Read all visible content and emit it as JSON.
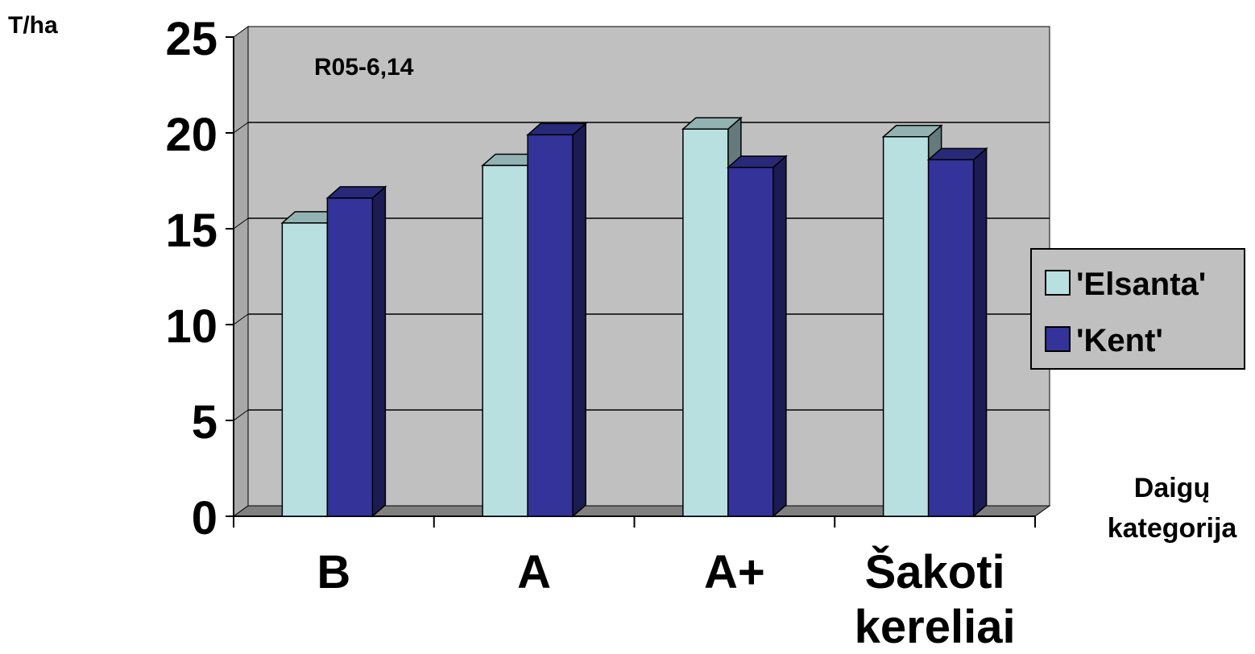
{
  "chart_data": {
    "type": "bar",
    "ylabel": "T/ha",
    "xlabel": [
      "Daigų",
      "kategorija"
    ],
    "annotation": "R05-6,14",
    "categories": [
      [
        "B"
      ],
      [
        "A"
      ],
      [
        "A+"
      ],
      [
        "Šakoti",
        "kereliai"
      ]
    ],
    "series": [
      {
        "name": "'Elsanta'",
        "values": [
          15.3,
          18.3,
          20.2,
          19.8
        ],
        "color": "#b8e0e0"
      },
      {
        "name": "'Kent'",
        "values": [
          16.6,
          19.9,
          18.2,
          18.6
        ],
        "color": "#333399"
      }
    ],
    "yticks": [
      0,
      5,
      10,
      15,
      20,
      25
    ],
    "ylim": [
      0,
      25
    ],
    "grid": true,
    "style": "3d-clustered-column",
    "legend_position": "right",
    "wall_color": "#c0c0c0",
    "floor_color": "#808080"
  }
}
